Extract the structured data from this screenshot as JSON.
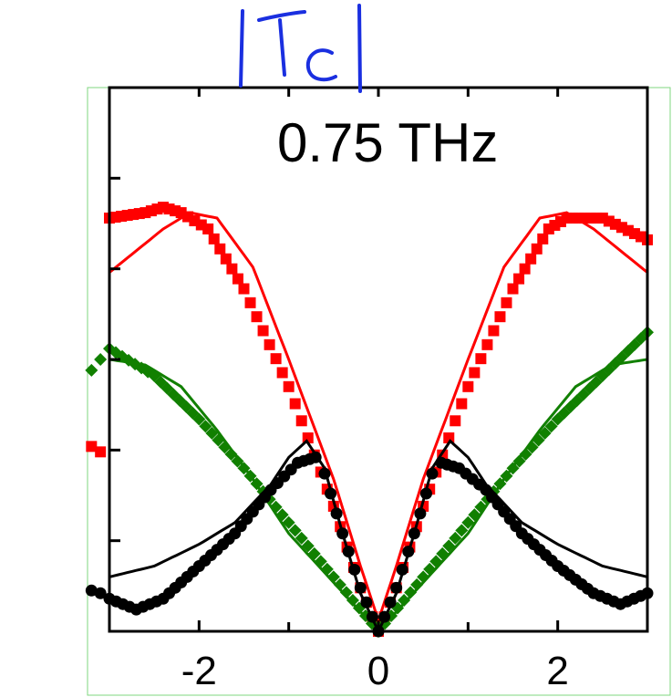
{
  "chart_data": {
    "type": "line",
    "annotation": "0.75 THz",
    "handwritten_label": "|Tc|",
    "xlim": [
      -3.0,
      3.0
    ],
    "ylim": [
      0.0,
      1.0
    ],
    "x_ticks": [
      -2,
      0,
      2
    ],
    "x_tick_labels": [
      "-2",
      "0",
      "2"
    ],
    "grid": false,
    "colors": {
      "red": "#ff0000",
      "green": "#118000",
      "black": "#000000",
      "frame": "#7fd77f",
      "ink": "#1a2fe0"
    },
    "series": [
      {
        "style": "markers",
        "marker": "square",
        "color": "#ff0000",
        "x": [
          -3.0,
          -2.6,
          -2.4,
          -2.2,
          -1.9,
          -1.5,
          -1.0,
          -0.5,
          -0.2,
          0.0,
          0.2,
          0.5,
          1.0,
          1.5,
          1.9,
          2.1,
          2.5,
          3.0
        ],
        "y": [
          0.76,
          0.77,
          0.78,
          0.77,
          0.74,
          0.63,
          0.45,
          0.23,
          0.08,
          0.0,
          0.08,
          0.23,
          0.45,
          0.63,
          0.74,
          0.76,
          0.76,
          0.72
        ]
      },
      {
        "style": "line",
        "color": "#ff0000",
        "x": [
          -3.0,
          -2.7,
          -2.4,
          -2.1,
          -1.8,
          -1.4,
          -1.0,
          -0.5,
          -0.2,
          0.0,
          0.2,
          0.5,
          1.0,
          1.4,
          1.8,
          2.1,
          2.4,
          2.7,
          3.0
        ],
        "y": [
          0.66,
          0.7,
          0.74,
          0.77,
          0.76,
          0.67,
          0.5,
          0.28,
          0.12,
          0.02,
          0.12,
          0.28,
          0.5,
          0.67,
          0.76,
          0.77,
          0.74,
          0.7,
          0.66
        ]
      },
      {
        "style": "markers",
        "marker": "diamond",
        "color": "#118000",
        "x": [
          -3.0,
          -2.5,
          -2.0,
          -1.5,
          -1.0,
          -0.5,
          0.0,
          0.5,
          1.0,
          1.5,
          2.0,
          2.5,
          3.0
        ],
        "y": [
          0.52,
          0.47,
          0.39,
          0.3,
          0.2,
          0.1,
          0.0,
          0.1,
          0.2,
          0.3,
          0.39,
          0.47,
          0.55
        ]
      },
      {
        "style": "line",
        "color": "#118000",
        "x": [
          -3.0,
          -2.6,
          -2.2,
          -1.8,
          -1.4,
          -1.0,
          -0.5,
          0.0,
          0.5,
          1.0,
          1.4,
          1.8,
          2.2,
          2.6,
          3.0
        ],
        "y": [
          0.5,
          0.49,
          0.45,
          0.37,
          0.28,
          0.18,
          0.09,
          0.0,
          0.09,
          0.18,
          0.28,
          0.37,
          0.45,
          0.49,
          0.5
        ]
      },
      {
        "style": "markers",
        "marker": "circle",
        "color": "#000000",
        "x": [
          -3.0,
          -2.7,
          -2.4,
          -2.0,
          -1.6,
          -1.2,
          -0.9,
          -0.7,
          -0.6,
          -0.4,
          -0.2,
          0.0,
          0.2,
          0.4,
          0.6,
          0.7,
          0.9,
          1.2,
          1.6,
          2.0,
          2.4,
          2.7,
          3.0
        ],
        "y": [
          0.06,
          0.04,
          0.06,
          0.12,
          0.18,
          0.26,
          0.31,
          0.32,
          0.29,
          0.18,
          0.08,
          0.0,
          0.08,
          0.18,
          0.29,
          0.31,
          0.3,
          0.26,
          0.18,
          0.12,
          0.07,
          0.05,
          0.07
        ]
      },
      {
        "style": "line",
        "color": "#000000",
        "x": [
          -3.0,
          -2.5,
          -2.0,
          -1.6,
          -1.2,
          -1.0,
          -0.8,
          -0.6,
          -0.4,
          -0.2,
          0.0,
          0.2,
          0.4,
          0.6,
          0.8,
          1.0,
          1.2,
          1.6,
          2.0,
          2.5,
          3.0
        ],
        "y": [
          0.1,
          0.12,
          0.16,
          0.2,
          0.27,
          0.32,
          0.35,
          0.3,
          0.18,
          0.07,
          0.0,
          0.07,
          0.18,
          0.3,
          0.35,
          0.32,
          0.27,
          0.2,
          0.16,
          0.12,
          0.1
        ]
      }
    ]
  }
}
